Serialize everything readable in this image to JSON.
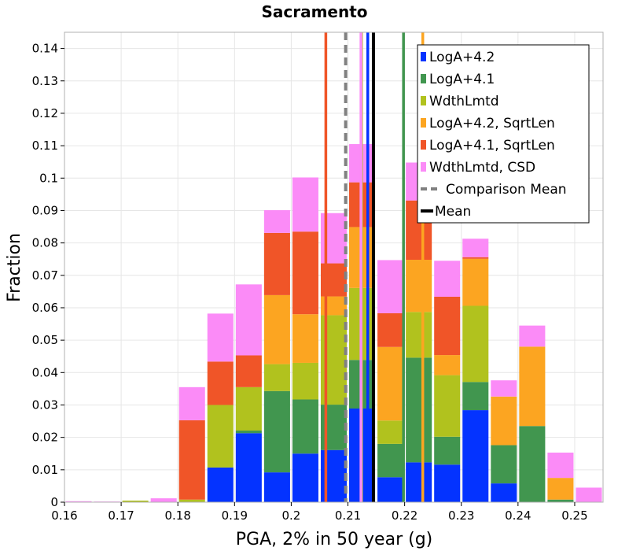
{
  "chart_data": {
    "type": "bar",
    "stacked": true,
    "title": "Sacramento",
    "xlabel": "PGA, 2% in 50 year (g)",
    "ylabel": "Fraction",
    "xlim": [
      0.16,
      0.255
    ],
    "ylim": [
      0,
      0.145
    ],
    "grid": true,
    "legend_position": "top-right",
    "xticks": [
      "0.16",
      "0.17",
      "0.18",
      "0.19",
      "0.2",
      "0.21",
      "0.22",
      "0.23",
      "0.24",
      "0.25"
    ],
    "yticks": [
      "0",
      "0.01",
      "0.02",
      "0.03",
      "0.04",
      "0.05",
      "0.06",
      "0.07",
      "0.08",
      "0.09",
      "0.1",
      "0.11",
      "0.12",
      "0.13",
      "0.14"
    ],
    "bin_width": 0.005,
    "bins": [
      0.1625,
      0.1675,
      0.1725,
      0.1775,
      0.1825,
      0.1875,
      0.1925,
      0.1975,
      0.2025,
      0.2075,
      0.2125,
      0.2175,
      0.2225,
      0.2275,
      0.2325,
      0.2375,
      0.2425,
      0.2475,
      0.2525
    ],
    "series": [
      {
        "name": "LogA+4.2",
        "color": "#0433ff",
        "values": [
          0,
          0,
          0,
          0,
          0,
          0.0107,
          0.0213,
          0.0092,
          0.015,
          0.0161,
          0.0289,
          0.0077,
          0.0123,
          0.0116,
          0.0284,
          0.0058,
          0,
          0,
          0
        ]
      },
      {
        "name": "LogA+4.1",
        "color": "#41964f",
        "values": [
          0,
          0,
          0,
          0,
          0,
          0,
          0.0008,
          0.0251,
          0.0167,
          0.014,
          0.015,
          0.0103,
          0.0323,
          0.0086,
          0.0087,
          0.0118,
          0.0235,
          0.0008,
          0
        ]
      },
      {
        "name": "WdthLmtd",
        "color": "#b1c21e",
        "values": [
          0,
          0,
          0.0005,
          0,
          0.0008,
          0.0193,
          0.0134,
          0.0083,
          0.0113,
          0.0276,
          0.0222,
          0.0072,
          0.0141,
          0.019,
          0.0235,
          0,
          0,
          0,
          0
        ]
      },
      {
        "name": "LogA+4.2, SqrtLen",
        "color": "#fca521",
        "values": [
          0,
          0,
          0,
          0,
          0,
          0,
          0,
          0.0213,
          0.015,
          0.0058,
          0.0188,
          0.0227,
          0.0161,
          0.0062,
          0.0145,
          0.015,
          0.0245,
          0.0067,
          0
        ]
      },
      {
        "name": "LogA+4.1, SqrtLen",
        "color": "#f05528",
        "values": [
          0,
          0,
          0,
          0,
          0.0245,
          0.0134,
          0.0098,
          0.0192,
          0.0255,
          0.0102,
          0.0138,
          0.0104,
          0.0183,
          0.018,
          0.0005,
          0,
          0,
          0,
          0
        ]
      },
      {
        "name": "WdthLmtd, CSD",
        "color": "#fb8bf7",
        "values": [
          0.0003,
          0.0002,
          0,
          0.0012,
          0.0102,
          0.0148,
          0.0219,
          0.007,
          0.0167,
          0.0155,
          0.0118,
          0.0164,
          0.0117,
          0.0111,
          0.0057,
          0.005,
          0.0065,
          0.0078,
          0.0045
        ]
      }
    ],
    "vlines": [
      {
        "name": "LogA+4.2",
        "x": 0.2135,
        "color": "#0433ff",
        "style": "solid"
      },
      {
        "name": "LogA+4.1",
        "x": 0.2198,
        "color": "#41964f",
        "style": "solid"
      },
      {
        "name": "WdthLmtd",
        "x": 0.2124,
        "color": "#b1c21e",
        "style": "solid"
      },
      {
        "name": "LogA+4.2, SqrtLen",
        "x": 0.2232,
        "color": "#fca521",
        "style": "solid"
      },
      {
        "name": "LogA+4.1, SqrtLen",
        "x": 0.2061,
        "color": "#f05528",
        "style": "solid"
      },
      {
        "name": "WdthLmtd, CSD",
        "x": 0.2123,
        "color": "#fb8bf7",
        "style": "solid"
      },
      {
        "name": "Comparison Mean",
        "x": 0.2096,
        "color": "#808080",
        "style": "dashed"
      },
      {
        "name": "Mean",
        "x": 0.2145,
        "color": "#000000",
        "style": "solid"
      }
    ],
    "legend": [
      {
        "label": "LogA+4.2",
        "color": "#0433ff",
        "kind": "box"
      },
      {
        "label": "LogA+4.1",
        "color": "#41964f",
        "kind": "box"
      },
      {
        "label": "WdthLmtd",
        "color": "#b1c21e",
        "kind": "box"
      },
      {
        "label": "LogA+4.2, SqrtLen",
        "color": "#fca521",
        "kind": "box"
      },
      {
        "label": "LogA+4.1, SqrtLen",
        "color": "#f05528",
        "kind": "box"
      },
      {
        "label": "WdthLmtd, CSD",
        "color": "#fb8bf7",
        "kind": "box"
      },
      {
        "label": "Comparison Mean",
        "color": "#808080",
        "kind": "dashed"
      },
      {
        "label": "Mean",
        "color": "#000000",
        "kind": "line"
      }
    ]
  }
}
